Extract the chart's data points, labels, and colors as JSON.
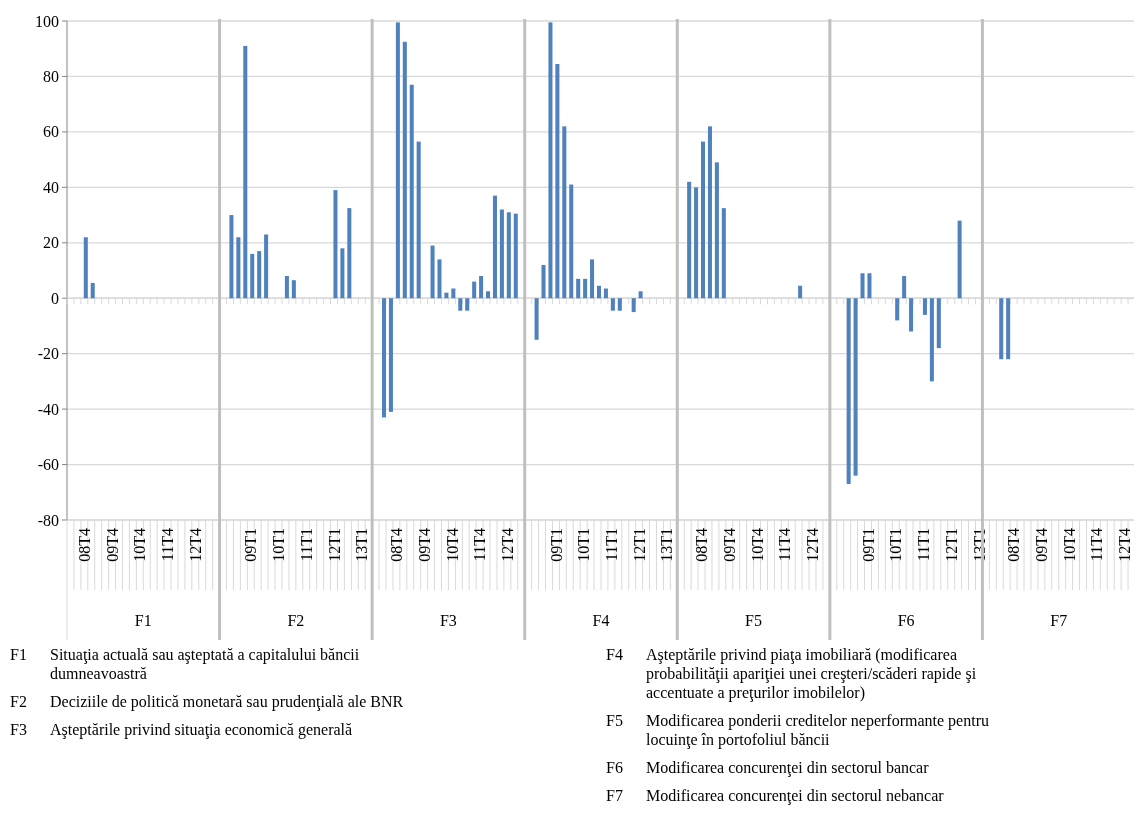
{
  "chart_data": {
    "type": "bar",
    "categories": [
      null,
      null,
      "08T4",
      null,
      null,
      null,
      "09T4",
      null,
      null,
      null,
      "10T4",
      null,
      null,
      null,
      "11T4",
      null,
      null,
      null,
      "12T4",
      null,
      null,
      null,
      null,
      null,
      null,
      null,
      "09T1",
      null,
      null,
      null,
      "10T1",
      null,
      null,
      null,
      "11T1",
      null,
      null,
      null,
      "12T1",
      null,
      null,
      null,
      "13T1",
      null,
      null,
      null,
      null,
      "08T4",
      null,
      null,
      null,
      "09T4",
      null,
      null,
      null,
      "10T4",
      null,
      null,
      null,
      "11T4",
      null,
      null,
      null,
      "12T4",
      null,
      null,
      null,
      null,
      null,
      null,
      "09T1",
      null,
      null,
      null,
      "10T1",
      null,
      null,
      null,
      "11T1",
      null,
      null,
      null,
      "12T1",
      null,
      null,
      null,
      "13T1",
      null,
      null,
      null,
      null,
      "08T4",
      null,
      null,
      null,
      "09T4",
      null,
      null,
      null,
      "10T4",
      null,
      null,
      null,
      "11T4",
      null,
      null,
      null,
      "12T4",
      null,
      null,
      null,
      null,
      null,
      null,
      null,
      "09T1",
      null,
      null,
      null,
      "10T1",
      null,
      null,
      null,
      "11T1",
      null,
      null,
      null,
      "12T1",
      null,
      null,
      null,
      "13T1",
      null,
      null,
      null,
      null,
      "08T4",
      null,
      null,
      null,
      "09T4",
      null,
      null,
      null,
      "10T4",
      null,
      null,
      null,
      "11T4",
      null,
      null,
      null,
      "12T4",
      null
    ],
    "values": [
      null,
      null,
      22,
      5.5,
      null,
      null,
      null,
      null,
      null,
      null,
      null,
      null,
      null,
      null,
      null,
      null,
      null,
      null,
      null,
      null,
      null,
      null,
      null,
      30,
      22,
      91,
      16,
      17,
      23,
      null,
      null,
      8,
      6.5,
      null,
      null,
      null,
      null,
      null,
      39,
      18,
      32.5,
      null,
      null,
      null,
      null,
      -43,
      -41,
      99.5,
      92.5,
      77,
      56.5,
      null,
      19,
      14,
      2,
      3.5,
      -4.5,
      -4.5,
      6,
      8,
      2.5,
      37,
      32,
      31,
      30.5,
      null,
      null,
      -15,
      12,
      99.5,
      84.5,
      62,
      41,
      7,
      7,
      14,
      4.5,
      3.5,
      -4.5,
      -4.5,
      null,
      -5,
      2.5,
      null,
      null,
      null,
      null,
      null,
      null,
      42,
      40,
      56.5,
      62,
      49,
      32.5,
      null,
      null,
      null,
      null,
      null,
      null,
      null,
      null,
      null,
      null,
      4.5,
      null,
      null,
      null,
      null,
      null,
      null,
      -67,
      -64,
      9,
      9,
      null,
      null,
      null,
      -8,
      8,
      -12,
      null,
      -6,
      -30,
      -18,
      null,
      null,
      28,
      null,
      null,
      null,
      null,
      null,
      -22,
      -22,
      null,
      null,
      null,
      null,
      null,
      null,
      null,
      null,
      null,
      null,
      null,
      null,
      null,
      null,
      null,
      null,
      null,
      null
    ],
    "color": "#4f81bd",
    "ylim": [
      -80,
      100
    ],
    "yticks": [
      -80,
      -60,
      -40,
      -20,
      0,
      20,
      40,
      60,
      80,
      100
    ],
    "grid": "y",
    "annotations": [
      "F1",
      "F2",
      "F3",
      "F4",
      "F5",
      "F6",
      "F7",
      "Situaţia actuală sau aşteptată a capitalului băncii dumneavoastră",
      "Deciziile de politică monetară sau prudenţială ale BNR",
      "Aşteptările privind situaţia economică generală",
      "Aşteptările privind piaţa imobiliară (modificarea probabilităţii apariţiei unei creşteri/scăderi rapide şi accentuate a preţurilor imobilelor)",
      "Modificarea ponderii creditelor neperformante pentru locuinţe în portofoliul băncii",
      "Modificarea concurenţei din sectorul bancar",
      "Modificarea concurenţei din sectorul nebancar"
    ]
  }
}
